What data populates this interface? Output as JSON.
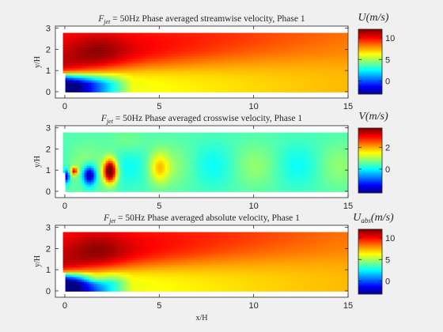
{
  "chart_data": [
    {
      "type": "heatmap",
      "title_prefix": "F",
      "title_sub": "jet",
      "title_rest": " = 50Hz Phase averaged streamwise velocity, Phase 1",
      "xlabel": "",
      "ylabel": "y/H",
      "xlim": [
        -0.5,
        15
      ],
      "ylim": [
        -0.3,
        3.1
      ],
      "x_ticks": [
        "0",
        "5",
        "10",
        "15"
      ],
      "y_ticks": [
        "0",
        "1",
        "2",
        "3"
      ],
      "colorbar_label_main": "U",
      "colorbar_label_sub": "",
      "colorbar_label_units": "(m/s)",
      "colorbar_ticks": [
        "10",
        "5",
        "0"
      ],
      "colorbar_range": [
        -3,
        12
      ],
      "colormap": "jet",
      "field": "streamwise"
    },
    {
      "type": "heatmap",
      "title_prefix": "F",
      "title_sub": "jet",
      "title_rest": " = 50Hz Phase averaged crosswise velocity, Phase 1",
      "xlabel": "",
      "ylabel": "y/H",
      "xlim": [
        -0.5,
        15
      ],
      "ylim": [
        -0.3,
        3.1
      ],
      "x_ticks": [
        "0",
        "5",
        "10",
        "15"
      ],
      "y_ticks": [
        "0",
        "1",
        "2",
        "3"
      ],
      "colorbar_label_main": "V",
      "colorbar_label_sub": "",
      "colorbar_label_units": "(m/s)",
      "colorbar_ticks": [
        "2",
        "0"
      ],
      "colorbar_range": [
        -2.2,
        3.8
      ],
      "colormap": "jet",
      "field": "crosswise"
    },
    {
      "type": "heatmap",
      "title_prefix": "F",
      "title_sub": "jet",
      "title_rest": " = 50Hz Phase averaged absolute velocity, Phase 1",
      "xlabel": "x/H",
      "ylabel": "y/H",
      "xlim": [
        -0.5,
        15
      ],
      "ylim": [
        -0.3,
        3.1
      ],
      "x_ticks": [
        "0",
        "5",
        "10",
        "15"
      ],
      "y_ticks": [
        "0",
        "1",
        "2",
        "3"
      ],
      "colorbar_label_main": "U",
      "colorbar_label_sub": "abs",
      "colorbar_label_units": "(m/s)",
      "colorbar_ticks": [
        "10",
        "5",
        "0"
      ],
      "colorbar_range": [
        -3,
        12
      ],
      "colormap": "jet",
      "field": "absolute"
    }
  ]
}
